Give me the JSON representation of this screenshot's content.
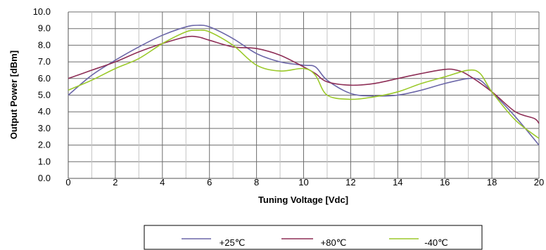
{
  "chart_data": {
    "type": "line",
    "title": "",
    "xlabel": "Tuning Voltage [Vdc]",
    "ylabel": "Output Power [dBm]",
    "xlim": [
      0,
      20
    ],
    "ylim": [
      0,
      10
    ],
    "x_ticks": [
      "0",
      "2",
      "4",
      "6",
      "8",
      "10",
      "12",
      "14",
      "16",
      "18",
      "20"
    ],
    "y_ticks": [
      "0.0",
      "1.0",
      "2.0",
      "3.0",
      "4.0",
      "5.0",
      "6.0",
      "7.0",
      "8.0",
      "9.0",
      "10.0"
    ],
    "grid": true,
    "legend_position": "bottom",
    "series": [
      {
        "name": "+25℃",
        "color": "#6b66a8",
        "x": [
          0,
          1,
          2,
          3,
          4,
          5,
          5.5,
          6,
          7,
          8,
          9,
          10,
          10.5,
          11,
          12,
          13,
          14,
          15,
          16,
          17,
          17.5,
          18,
          19,
          20
        ],
        "y": [
          5.0,
          6.2,
          7.1,
          7.9,
          8.6,
          9.1,
          9.2,
          9.1,
          8.4,
          7.5,
          7.0,
          6.8,
          6.7,
          5.9,
          5.1,
          4.95,
          5.0,
          5.3,
          5.7,
          6.0,
          5.9,
          5.2,
          3.7,
          2.0
        ]
      },
      {
        "name": "+80℃",
        "color": "#8e2f57",
        "x": [
          0,
          1,
          2,
          3,
          4,
          5,
          5.5,
          6,
          7,
          8,
          9,
          10,
          10.5,
          11,
          12,
          13,
          14,
          15,
          16,
          16.5,
          17,
          18,
          19,
          19.8,
          20
        ],
        "y": [
          6.0,
          6.5,
          7.0,
          7.6,
          8.1,
          8.5,
          8.5,
          8.3,
          7.9,
          7.8,
          7.4,
          6.7,
          6.3,
          5.8,
          5.6,
          5.7,
          6.0,
          6.3,
          6.55,
          6.5,
          6.2,
          5.2,
          4.0,
          3.6,
          3.3
        ]
      },
      {
        "name": "-40℃",
        "color": "#9bc92a",
        "x": [
          0,
          1,
          2,
          3,
          4,
          5,
          5.5,
          6,
          7,
          8,
          9,
          10,
          10.5,
          11,
          12,
          13,
          14,
          15,
          16,
          17,
          17.5,
          18,
          19,
          20
        ],
        "y": [
          5.3,
          5.9,
          6.6,
          7.2,
          8.1,
          8.8,
          8.9,
          8.8,
          8.0,
          6.8,
          6.45,
          6.6,
          6.2,
          5.0,
          4.75,
          4.9,
          5.2,
          5.7,
          6.1,
          6.5,
          6.3,
          5.2,
          3.5,
          2.4
        ]
      }
    ]
  }
}
